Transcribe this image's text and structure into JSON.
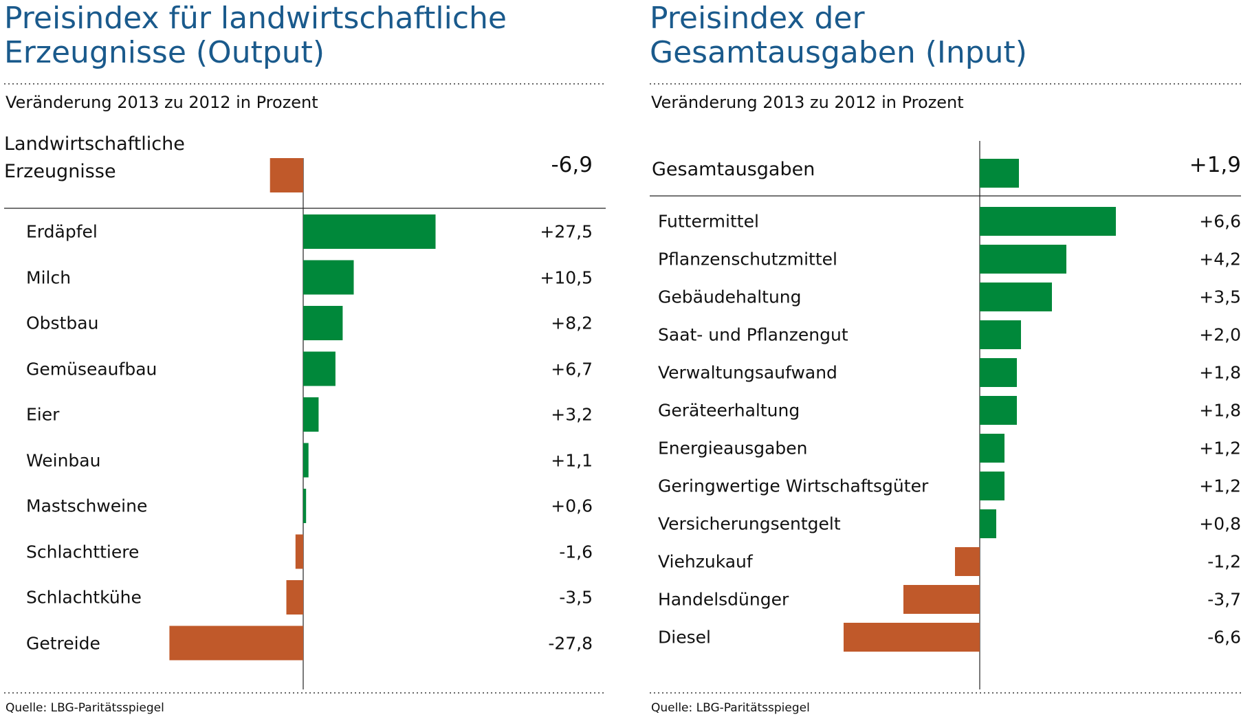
{
  "chart_data": [
    {
      "type": "bar",
      "orientation": "horizontal",
      "title": "Preisindex für landwirtschaftliche Erzeugnisse (Output)",
      "subtitle": "Veränderung 2013 zu 2012 in Prozent",
      "source": "Quelle: LBG-Paritätsspiegel",
      "summary": {
        "category": "Landwirtschaftliche Erzeugnisse",
        "value": -6.9,
        "value_label": "-6,9"
      },
      "categories": [
        "Erdäpfel",
        "Milch",
        "Obstbau",
        "Gemüseaufbau",
        "Eier",
        "Weinbau",
        "Mastschweine",
        "Schlachttiere",
        "Schlachtkühe",
        "Getreide"
      ],
      "values": [
        27.5,
        10.5,
        8.2,
        6.7,
        3.2,
        1.1,
        0.6,
        -1.6,
        -3.5,
        -27.8
      ],
      "value_labels": [
        "+27,5",
        "+10,5",
        "+8,2",
        "+6,7",
        "+3,2",
        "+1,1",
        "+0,6",
        "-1,6",
        "-3,5",
        "-27,8"
      ],
      "positive_color": "#00883a",
      "negative_color": "#c0592a"
    },
    {
      "type": "bar",
      "orientation": "horizontal",
      "title": "Preisindex der Gesamtausgaben (Input)",
      "subtitle": "Veränderung 2013 zu 2012 in Prozent",
      "source": "Quelle: LBG-Paritätsspiegel",
      "summary": {
        "category": "Gesamtausgaben",
        "value": 1.9,
        "value_label": "+1,9"
      },
      "categories": [
        "Futtermittel",
        "Pflanzenschutzmittel",
        "Gebäudehaltung",
        "Saat- und Pflanzengut",
        "Verwaltungsaufwand",
        "Geräteerhaltung",
        "Energieausgaben",
        "Geringwertige Wirtschaftsgüter",
        "Versicherungsentgelt",
        "Viehzukauf",
        "Handelsdünger",
        "Diesel"
      ],
      "values": [
        6.6,
        4.2,
        3.5,
        2.0,
        1.8,
        1.8,
        1.2,
        1.2,
        0.8,
        -1.2,
        -3.7,
        -6.6
      ],
      "value_labels": [
        "+6,6",
        "+4,2",
        "+3,5",
        "+2,0",
        "+1,8",
        "+1,8",
        "+1,2",
        "+1,2",
        "+0,8",
        "-1,2",
        "-3,7",
        "-6,6"
      ],
      "positive_color": "#00883a",
      "negative_color": "#c0592a"
    }
  ]
}
